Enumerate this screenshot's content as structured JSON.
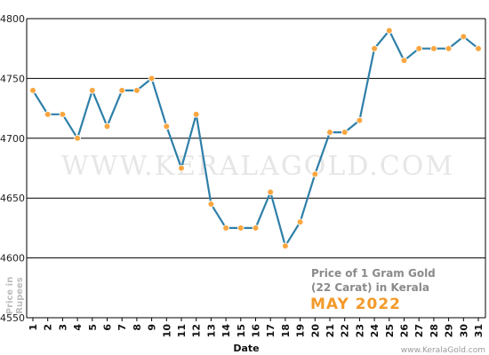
{
  "chart_data": {
    "type": "line",
    "xlabel": "Date",
    "ylabel_lines": [
      "Price in",
      "Rupees"
    ],
    "categories": [
      "1",
      "2",
      "3",
      "4",
      "5",
      "6",
      "7",
      "8",
      "9",
      "10",
      "11",
      "12",
      "13",
      "14",
      "15",
      "16",
      "17",
      "18",
      "19",
      "20",
      "21",
      "22",
      "23",
      "24",
      "25",
      "26",
      "27",
      "28",
      "29",
      "30",
      "31"
    ],
    "values": [
      4740,
      4720,
      4720,
      4700,
      4740,
      4710,
      4740,
      4740,
      4750,
      4710,
      4675,
      4720,
      4645,
      4625,
      4625,
      4625,
      4655,
      4610,
      4630,
      4670,
      4705,
      4705,
      4715,
      4775,
      4790,
      4765,
      4775,
      4775,
      4775,
      4785,
      4775
    ],
    "ylim": [
      4550,
      4800
    ],
    "yticks": [
      "4550",
      "4600",
      "4650",
      "4700",
      "4750",
      "4800"
    ],
    "grid": true,
    "legend": "none",
    "watermark": "WWW.KERALAGOLD.COM",
    "info_lines": [
      "Price of 1 Gram Gold",
      "(22 Carat) in Kerala"
    ],
    "month_label": "MAY 2022",
    "credit": "www.KeralaGold.com",
    "colors": {
      "line": "#2e7fa8",
      "marker_fill": "#f8a640",
      "marker_stroke": "#ffffff",
      "grid": "#000000",
      "month": "#f39a2b"
    }
  }
}
